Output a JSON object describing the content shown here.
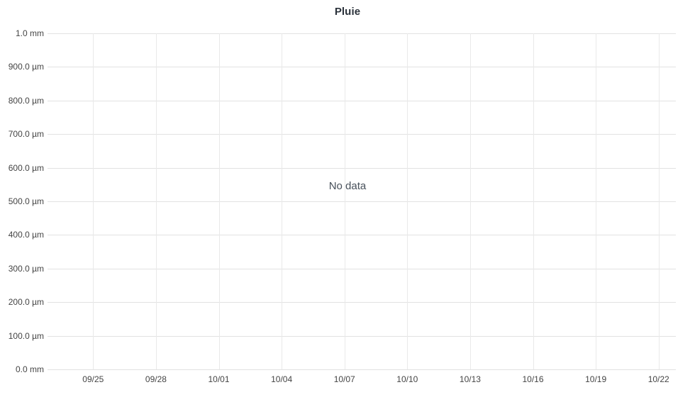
{
  "chart_data": {
    "type": "line",
    "title": "Pluie",
    "no_data_label": "No data",
    "xlabel": "",
    "ylabel": "",
    "unit": "mm",
    "grid": true,
    "legend": false,
    "series": [],
    "x_ticks": [
      "09/25",
      "09/28",
      "10/01",
      "10/04",
      "10/07",
      "10/10",
      "10/13",
      "10/16",
      "10/19",
      "10/22"
    ],
    "y_ticks": [
      "1.0 mm",
      "900.0 µm",
      "800.0 µm",
      "700.0 µm",
      "600.0 µm",
      "500.0 µm",
      "400.0 µm",
      "300.0 µm",
      "200.0 µm",
      "100.0 µm",
      "0.0 mm"
    ],
    "y_ticks_mm": [
      1.0,
      0.9,
      0.8,
      0.7,
      0.6,
      0.5,
      0.4,
      0.3,
      0.2,
      0.1,
      0.0
    ],
    "ylim_mm": [
      0.0,
      1.0
    ],
    "colors": {
      "background": "#ffffff",
      "grid_horizontal": "#e2e2e2",
      "grid_vertical": "#e9e9e9",
      "axis_label": "#444444",
      "title": "#2b323b",
      "no_data": "#47505a"
    }
  }
}
